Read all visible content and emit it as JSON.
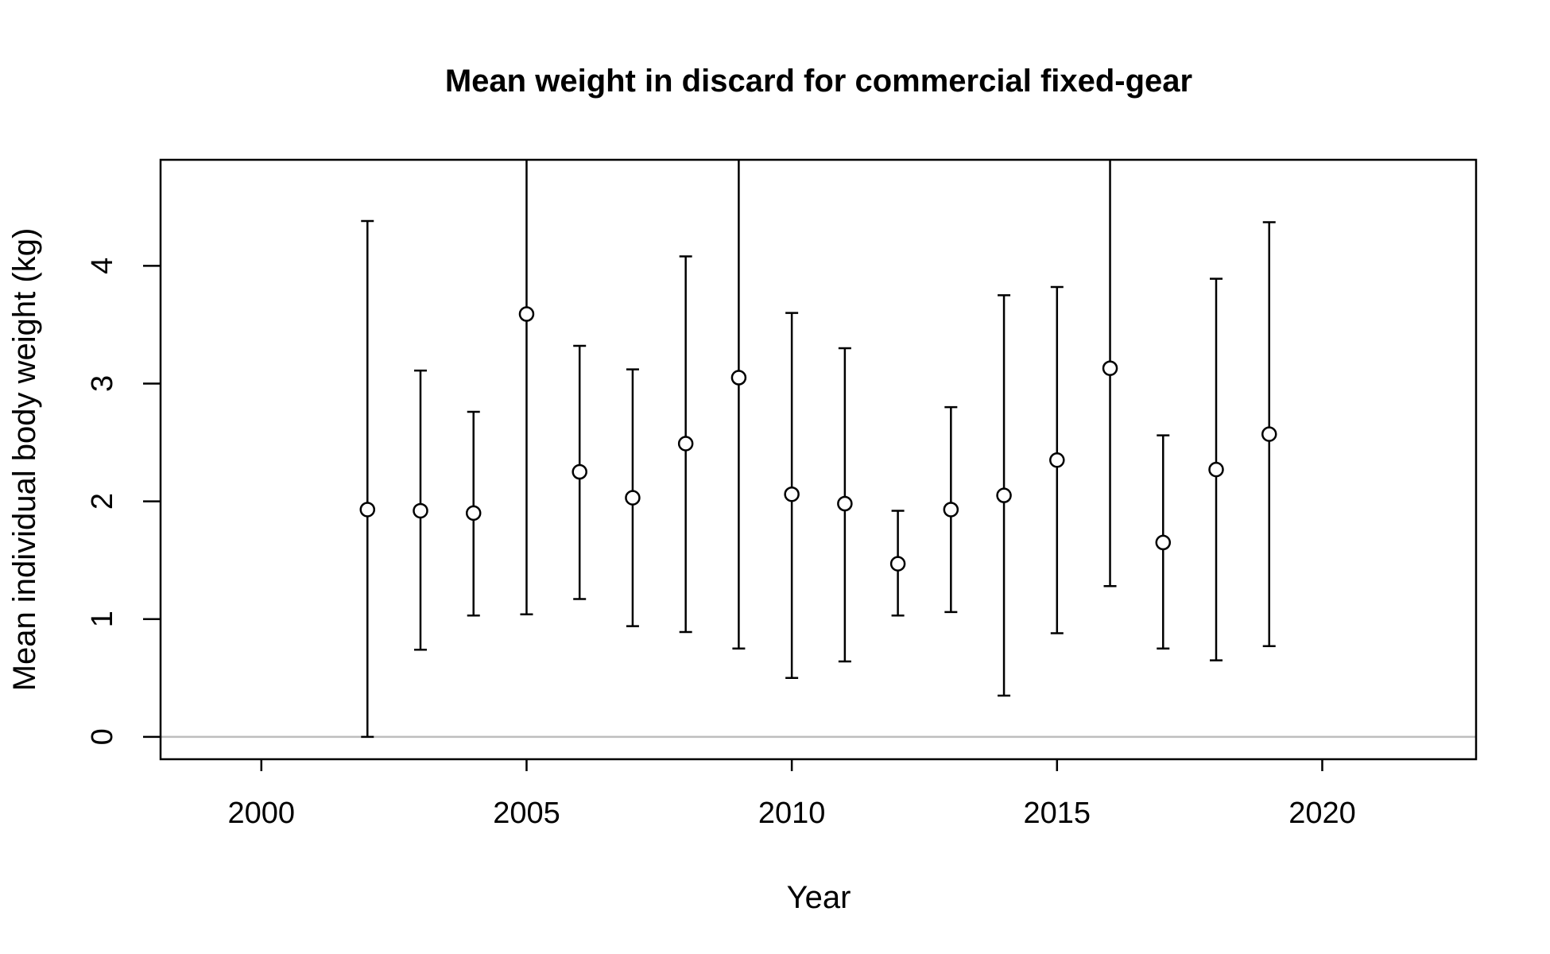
{
  "chart_data": {
    "type": "scatter",
    "title": "Mean weight in discard for commercial fixed-gear",
    "xlabel": "Year",
    "ylabel": "Mean individual body weight (kg)",
    "xlim": [
      1998.1,
      2022.9
    ],
    "ylim": [
      -0.19,
      4.9
    ],
    "x_ticks": [
      2000,
      2005,
      2010,
      2015,
      2020
    ],
    "y_ticks": [
      0,
      1,
      2,
      3,
      4
    ],
    "reference_line": 0,
    "series": [
      {
        "name": "Mean weight",
        "x": [
          2002,
          2003,
          2004,
          2005,
          2006,
          2007,
          2008,
          2009,
          2010,
          2011,
          2012,
          2013,
          2014,
          2015,
          2016,
          2017,
          2018,
          2019
        ],
        "y": [
          1.93,
          1.92,
          1.9,
          3.59,
          2.25,
          2.03,
          2.49,
          3.05,
          2.06,
          1.98,
          1.47,
          1.93,
          2.05,
          2.35,
          3.13,
          1.65,
          2.27,
          2.57
        ],
        "lower": [
          0.0,
          0.74,
          1.03,
          1.04,
          1.17,
          0.94,
          0.89,
          0.75,
          0.5,
          0.64,
          1.03,
          1.06,
          0.35,
          0.88,
          1.28,
          0.75,
          0.65,
          0.77
        ],
        "upper": [
          4.38,
          3.11,
          2.76,
          6.5,
          3.32,
          3.12,
          4.08,
          6.5,
          3.6,
          3.3,
          1.92,
          2.8,
          3.75,
          3.82,
          6.5,
          2.56,
          3.89,
          4.37
        ]
      }
    ],
    "colors": {
      "axis": "#000000",
      "points_fill": "#ffffff",
      "reference": "#bebebe"
    }
  }
}
